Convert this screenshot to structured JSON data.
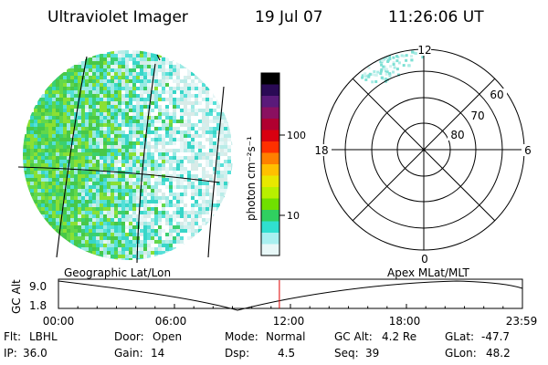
{
  "header": {
    "instrument": "Ultraviolet Imager",
    "date": "19 Jul 07",
    "time": "11:26:06 UT"
  },
  "colorbar": {
    "unit_label": "photon cm⁻²s⁻¹",
    "ticks": [
      "100",
      "10"
    ],
    "colors": [
      "#000000",
      "#2a0a55",
      "#5a1a7a",
      "#8a1060",
      "#b00030",
      "#d80010",
      "#ff3000",
      "#ff8000",
      "#ffc000",
      "#e8e800",
      "#b8f000",
      "#70e000",
      "#30d060",
      "#30e0d0",
      "#a8f0f0",
      "#e8f8f8"
    ]
  },
  "polar_plot": {
    "mlt_labels": {
      "top": "12",
      "left": "18",
      "right": "6",
      "bottom": "0"
    },
    "lat_labels": [
      "60",
      "70",
      "80"
    ]
  },
  "geo_map_title": "Geographic Lat/Lon",
  "polar_map_title": "Apex MLat/MLT",
  "altitude_plot": {
    "axis_label": "GC Alt",
    "y_ticks": [
      "9.0",
      "1.8"
    ],
    "x_ticks": [
      "00:00",
      "06:00",
      "12:00",
      "18:00",
      "23:59"
    ],
    "current_time_hours": 11.43
  },
  "info": {
    "row1": [
      {
        "label": "Flt:",
        "value": "LBHL"
      },
      {
        "label": "Door:",
        "value": "Open"
      },
      {
        "label": "Mode:",
        "value": "Normal"
      },
      {
        "label": "GC Alt:",
        "value": "4.2 Re"
      },
      {
        "label": "GLat:",
        "value": "-47.7"
      }
    ],
    "row2": [
      {
        "label": "IP:",
        "value": "36.0"
      },
      {
        "label": "Gain:",
        "value": "14"
      },
      {
        "label": "Dsp:",
        "value": "4.5"
      },
      {
        "label": "Seq:",
        "value": "39"
      },
      {
        "label": "GLon:",
        "value": "48.2"
      }
    ]
  }
}
